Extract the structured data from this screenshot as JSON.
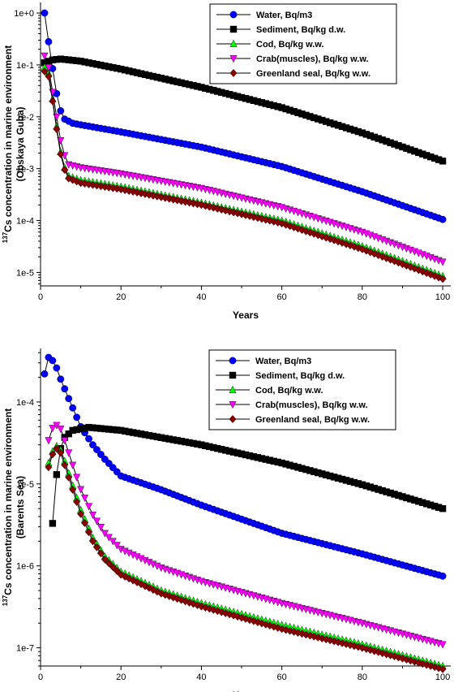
{
  "chart_data": [
    {
      "type": "line",
      "y_scale": "log",
      "ylabel_main": "Cs concentration in marine environment",
      "ylabel_superscript": "137",
      "ylabel_sub": "(Obskaya Guba)",
      "xlabel": "Years",
      "xlim": [
        0,
        102
      ],
      "ylim": [
        5.5e-06,
        1.6
      ],
      "x_ticks": [
        0,
        20,
        40,
        60,
        80,
        100
      ],
      "x_tick_labels": [
        "0",
        "20",
        "40",
        "60",
        "80",
        "100"
      ],
      "y_ticks": [
        1,
        0.1,
        0.01,
        0.001,
        0.0001,
        1e-05
      ],
      "y_tick_labels": [
        "1e+0",
        "1e-1",
        "1e-2",
        "1e-3",
        "1e-4",
        "1e-5"
      ],
      "legend_position": "top-right",
      "series": [
        {
          "name": "Water, Bq/m3",
          "color": "#0000ff",
          "marker": "circle",
          "points": [
            [
              1,
              1.0
            ],
            [
              2,
              0.28
            ],
            [
              3,
              0.085
            ],
            [
              4,
              0.028
            ],
            [
              5,
              0.013
            ],
            [
              6,
              0.009
            ],
            [
              8,
              0.0075
            ],
            [
              10,
              0.007
            ],
            [
              20,
              0.0051
            ],
            [
              40,
              0.0026
            ],
            [
              60,
              0.0011
            ],
            [
              80,
              0.00036
            ],
            [
              100,
              0.000105
            ]
          ]
        },
        {
          "name": "Sediment, Bq/kg d.w.",
          "color": "#000000",
          "marker": "square",
          "points": [
            [
              1,
              0.11
            ],
            [
              3,
              0.125
            ],
            [
              5,
              0.13
            ],
            [
              10,
              0.118
            ],
            [
              20,
              0.083
            ],
            [
              40,
              0.037
            ],
            [
              60,
              0.015
            ],
            [
              80,
              0.0049
            ],
            [
              100,
              0.0014
            ]
          ]
        },
        {
          "name": "Cod, Bq/kg w.w.",
          "color": "#00ff00",
          "marker": "triangle-up",
          "points": [
            [
              1,
              0.09
            ],
            [
              2,
              0.07
            ],
            [
              3,
              0.022
            ],
            [
              4,
              0.0065
            ],
            [
              5,
              0.0021
            ],
            [
              6,
              0.00105
            ],
            [
              7,
              0.00072
            ],
            [
              10,
              0.0006
            ],
            [
              20,
              0.00045
            ],
            [
              40,
              0.00022
            ],
            [
              60,
              0.0001
            ],
            [
              80,
              3.2e-05
            ],
            [
              100,
              8.5e-06
            ]
          ]
        },
        {
          "name": "Crab(muscles), Bq/kg w.w.",
          "color": "#ff00ff",
          "marker": "triangle-down",
          "points": [
            [
              1,
              0.15
            ],
            [
              2,
              0.09
            ],
            [
              3,
              0.03
            ],
            [
              4,
              0.01
            ],
            [
              5,
              0.0035
            ],
            [
              6,
              0.0018
            ],
            [
              7,
              0.0012
            ],
            [
              10,
              0.00105
            ],
            [
              20,
              0.0008
            ],
            [
              40,
              0.00042
            ],
            [
              60,
              0.00018
            ],
            [
              80,
              6e-05
            ],
            [
              100,
              1.6e-05
            ]
          ]
        },
        {
          "name": "Greenland seal, Bq/kg w.w.",
          "color": "#8b0000",
          "marker": "diamond",
          "points": [
            [
              1,
              0.075
            ],
            [
              2,
              0.06
            ],
            [
              3,
              0.02
            ],
            [
              4,
              0.0058
            ],
            [
              5,
              0.0019
            ],
            [
              6,
              0.00095
            ],
            [
              7,
              0.00065
            ],
            [
              10,
              0.00053
            ],
            [
              20,
              0.0004
            ],
            [
              40,
              0.0002
            ],
            [
              60,
              8.8e-05
            ],
            [
              80,
              2.8e-05
            ],
            [
              100,
              7.5e-06
            ]
          ]
        }
      ]
    },
    {
      "type": "line",
      "y_scale": "log",
      "ylabel_main": "Cs concentration in marine environment",
      "ylabel_superscript": "137",
      "ylabel_sub": "(Barents Sea)",
      "xlabel": "Years",
      "xlim": [
        0,
        102
      ],
      "ylim": [
        6e-08,
        0.00045
      ],
      "x_ticks": [
        0,
        20,
        40,
        60,
        80,
        100
      ],
      "x_tick_labels": [
        "0",
        "20",
        "40",
        "60",
        "80",
        "100"
      ],
      "y_ticks": [
        0.0001,
        1e-05,
        1e-06,
        1e-07
      ],
      "y_tick_labels": [
        "1e-4",
        "1e-5",
        "1e-6",
        "1e-7"
      ],
      "legend_position": "top-right",
      "series": [
        {
          "name": "Water, Bq/m3",
          "color": "#0000ff",
          "marker": "circle",
          "points": [
            [
              1,
              0.00022
            ],
            [
              2,
              0.00035
            ],
            [
              3,
              0.00032
            ],
            [
              4,
              0.00026
            ],
            [
              5,
              0.00019
            ],
            [
              7,
              0.00011
            ],
            [
              10,
              5e-05
            ],
            [
              13,
              3e-05
            ],
            [
              16,
              2e-05
            ],
            [
              20,
              1.25e-05
            ],
            [
              30,
              8.5e-06
            ],
            [
              40,
              5.5e-06
            ],
            [
              60,
              2.5e-06
            ],
            [
              80,
              1.4e-06
            ],
            [
              100,
              7.5e-07
            ]
          ]
        },
        {
          "name": "Sediment, Bq/kg d.w.",
          "color": "#000000",
          "marker": "square",
          "points": [
            [
              3,
              3.3e-06
            ],
            [
              4,
              1.3e-05
            ],
            [
              5,
              2.7e-05
            ],
            [
              6,
              3.7e-05
            ],
            [
              8,
              4.5e-05
            ],
            [
              12,
              4.9e-05
            ],
            [
              20,
              4.5e-05
            ],
            [
              40,
              3e-05
            ],
            [
              60,
              1.8e-05
            ],
            [
              80,
              9.8e-06
            ],
            [
              100,
              5e-06
            ]
          ]
        },
        {
          "name": "Cod, Bq/kg w.w.",
          "color": "#00ff00",
          "marker": "triangle-up",
          "points": [
            [
              2,
              1.8e-05
            ],
            [
              3,
              2.5e-05
            ],
            [
              4,
              2.9e-05
            ],
            [
              5,
              2.6e-05
            ],
            [
              6,
              1.9e-05
            ],
            [
              8,
              9.5e-06
            ],
            [
              10,
              4.8e-06
            ],
            [
              13,
              2.2e-06
            ],
            [
              16,
              1.3e-06
            ],
            [
              20,
              8.5e-07
            ],
            [
              30,
              5e-07
            ],
            [
              40,
              3.5e-07
            ],
            [
              60,
              1.9e-07
            ],
            [
              80,
              1.1e-07
            ],
            [
              100,
              6e-08
            ]
          ]
        },
        {
          "name": "Crab(muscles), Bq/kg w.w.",
          "color": "#ff00ff",
          "marker": "triangle-down",
          "points": [
            [
              2,
              3.4e-05
            ],
            [
              3,
              4.8e-05
            ],
            [
              4,
              5.2e-05
            ],
            [
              5,
              4.7e-05
            ],
            [
              6,
              3.4e-05
            ],
            [
              8,
              1.7e-05
            ],
            [
              10,
              8.6e-06
            ],
            [
              13,
              4.2e-06
            ],
            [
              16,
              2.5e-06
            ],
            [
              20,
              1.6e-06
            ],
            [
              30,
              9.5e-07
            ],
            [
              40,
              6.5e-07
            ],
            [
              60,
              3.5e-07
            ],
            [
              80,
              2e-07
            ],
            [
              100,
              1.1e-07
            ]
          ]
        },
        {
          "name": "Greenland seal, Bq/kg w.w.",
          "color": "#8b0000",
          "marker": "diamond",
          "points": [
            [
              2,
              1.6e-05
            ],
            [
              3,
              2.3e-05
            ],
            [
              4,
              2.7e-05
            ],
            [
              5,
              2.4e-05
            ],
            [
              6,
              1.7e-05
            ],
            [
              8,
              8.5e-06
            ],
            [
              10,
              4.3e-06
            ],
            [
              13,
              2e-06
            ],
            [
              16,
              1.2e-06
            ],
            [
              20,
              7.8e-07
            ],
            [
              30,
              4.6e-07
            ],
            [
              40,
              3.2e-07
            ],
            [
              60,
              1.7e-07
            ],
            [
              80,
              1e-07
            ],
            [
              100,
              5.5e-08
            ]
          ]
        }
      ]
    }
  ]
}
